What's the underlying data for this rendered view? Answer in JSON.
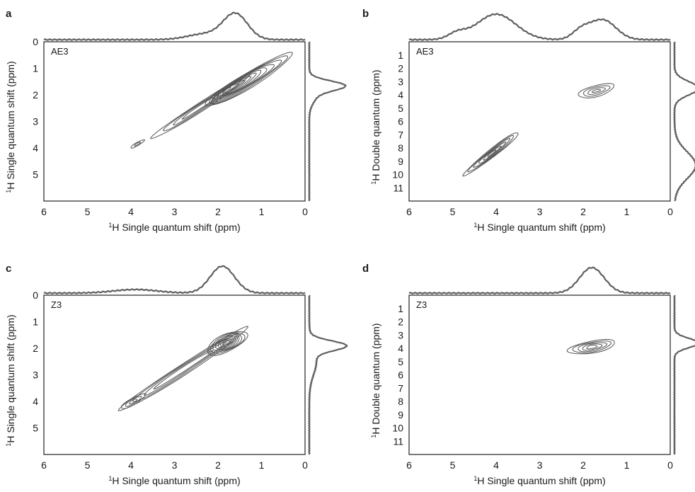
{
  "chart_data": [
    {
      "type": "heatmap",
      "panel": "a",
      "sample": "AE3",
      "xlabel": "Single quantum shift (ppm)",
      "xlabel_sup": "1",
      "xlabel_nucleus": "H",
      "ylabel": "Single quantum shift (ppm)",
      "ylabel_sup": "1",
      "ylabel_nucleus": "H",
      "xlim": [
        6,
        0
      ],
      "ylim": [
        0,
        6
      ],
      "xticks": [
        "6",
        "5",
        "4",
        "3",
        "2",
        "1",
        "0"
      ],
      "yticks": [
        "0",
        "1",
        "2",
        "3",
        "4",
        "5"
      ],
      "contours": [
        {
          "x": 1.7,
          "y": 1.75,
          "level": 1.0
        },
        {
          "x": 2.4,
          "y": 2.4,
          "level": 0.55
        },
        {
          "x": 3.85,
          "y": 3.85,
          "level": 0.25
        }
      ],
      "top_projection_peaks_ppm": [
        1.6
      ],
      "side_projection_peaks_ppm": [
        1.65
      ]
    },
    {
      "type": "heatmap",
      "panel": "b",
      "sample": "AE3",
      "xlabel": "Single quantum shift (ppm)",
      "xlabel_sup": "1",
      "xlabel_nucleus": "H",
      "ylabel": "Double quantum (ppm)",
      "ylabel_sup": "1",
      "ylabel_nucleus": "H",
      "xlim": [
        6,
        0
      ],
      "ylim": [
        0,
        12
      ],
      "xticks": [
        "6",
        "5",
        "4",
        "3",
        "2",
        "1",
        "0"
      ],
      "yticks": [
        "1",
        "2",
        "3",
        "4",
        "5",
        "6",
        "7",
        "8",
        "9",
        "10",
        "11"
      ],
      "contours": [
        {
          "x": 1.7,
          "y": 3.7,
          "level": 0.8
        },
        {
          "x": 4.1,
          "y": 8.4,
          "level": 1.0
        }
      ],
      "top_projection_peaks_ppm": [
        4.0,
        1.6
      ],
      "side_projection_peaks_ppm": [
        3.5,
        8.5
      ]
    },
    {
      "type": "heatmap",
      "panel": "c",
      "sample": "Z3",
      "xlabel": "Single quantum shift (ppm)",
      "xlabel_sup": "1",
      "xlabel_nucleus": "H",
      "ylabel": "Single quantum shift (ppm)",
      "ylabel_sup": "1",
      "ylabel_nucleus": "H",
      "xlim": [
        6,
        0
      ],
      "ylim": [
        0,
        6
      ],
      "xticks": [
        "6",
        "5",
        "4",
        "3",
        "2",
        "1",
        "0"
      ],
      "yticks": [
        "0",
        "1",
        "2",
        "3",
        "4",
        "5"
      ],
      "contours": [
        {
          "x": 1.8,
          "y": 1.8,
          "level": 1.0
        },
        {
          "x": 3.0,
          "y": 3.0,
          "level": 0.5
        },
        {
          "x": 4.0,
          "y": 4.0,
          "level": 0.35
        }
      ],
      "top_projection_peaks_ppm": [
        1.9
      ],
      "side_projection_peaks_ppm": [
        1.9
      ]
    },
    {
      "type": "heatmap",
      "panel": "d",
      "sample": "Z3",
      "xlabel": "Single quantum shift (ppm)",
      "xlabel_sup": "1",
      "xlabel_nucleus": "H",
      "ylabel": "Double quantum (ppm)",
      "ylabel_sup": "1",
      "ylabel_nucleus": "H",
      "xlim": [
        6,
        0
      ],
      "ylim": [
        0,
        12
      ],
      "xticks": [
        "6",
        "5",
        "4",
        "3",
        "2",
        "1",
        "0"
      ],
      "yticks": [
        "1",
        "2",
        "3",
        "4",
        "5",
        "6",
        "7",
        "8",
        "9",
        "10",
        "11"
      ],
      "contours": [
        {
          "x": 1.8,
          "y": 3.9,
          "level": 1.0
        }
      ],
      "top_projection_peaks_ppm": [
        1.8
      ],
      "side_projection_peaks_ppm": [
        3.7
      ]
    }
  ]
}
